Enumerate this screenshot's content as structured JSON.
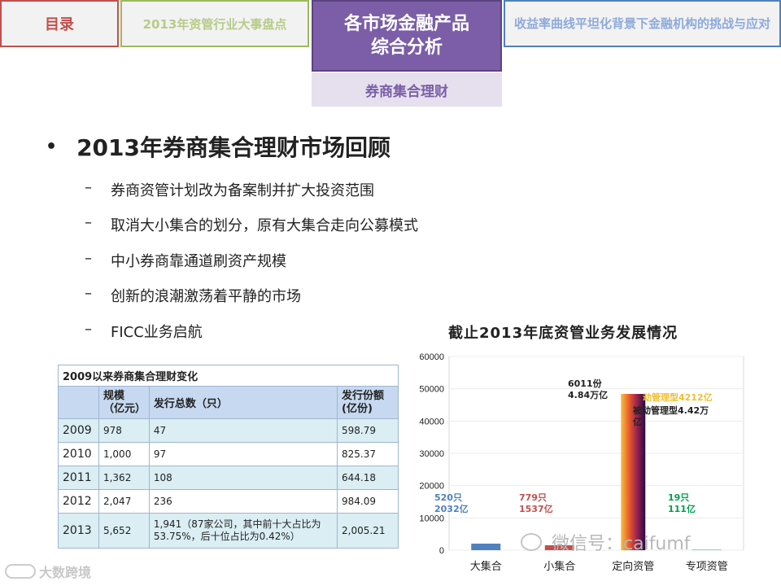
{
  "tabs": {
    "toc": "目录",
    "events": "2013年资管行业大事盘点",
    "analysis_line1": "各市场金融产品",
    "analysis_line2": "综合分析",
    "yield": "收益率曲线平坦化背景下金融机构的挑战与应对",
    "sub": "券商集合理财"
  },
  "main_bullet": "2013年券商集合理财市场回顾",
  "sub_bullets": [
    "券商资管计划改为备案制并扩大投资范围",
    "取消大小集合的划分，原有大集合走向公募模式",
    "中小券商靠通道刷资产规模",
    "创新的浪潮激荡着平静的市场",
    "FICC业务启航"
  ],
  "table": {
    "caption": "2009以来券商集合理财变化",
    "headers": [
      "",
      "规模\n（亿元）",
      "发行总数（只）",
      "发行份额\n(亿份)"
    ],
    "rows": [
      [
        "2009",
        "978",
        "47",
        "598.79"
      ],
      [
        "2010",
        "1,000",
        "97",
        "825.37"
      ],
      [
        "2011",
        "1,362",
        "108",
        "644.18"
      ],
      [
        "2012",
        "2,047",
        "236",
        "984.09"
      ],
      [
        "2013",
        "5,652",
        "1,941（87家公司，其中前十大占比为53.75%，后十位占比为0.42%）",
        "2,005.21"
      ]
    ]
  },
  "chart_data": {
    "type": "bar",
    "title": "截止2013年底资管业务发展情况",
    "categories": [
      "大集合",
      "小集合",
      "定向资管",
      "专项资管"
    ],
    "values": [
      2032,
      1537,
      48400,
      111
    ],
    "ylim": [
      0,
      60000
    ],
    "yticks": [
      0,
      10000,
      20000,
      30000,
      40000,
      50000,
      60000
    ],
    "annotations": [
      {
        "line1": "520只",
        "line2": "2032亿",
        "color": "#4f81bd"
      },
      {
        "line1": "779只",
        "line2": "1537亿",
        "color": "#c0504d"
      },
      {
        "line1": "6011份",
        "line2": "4.84万亿",
        "color": "#222222"
      },
      {
        "line1": "19只",
        "line2": "111亿",
        "color": "#00a050"
      }
    ],
    "stack_labels": {
      "active": "动管理型4212亿",
      "passive_1": "被动管理型4.42万",
      "passive_2": "亿"
    },
    "bar_colors": [
      "#4f81bd",
      "#c0504d",
      "#f0a020",
      "#00a050"
    ]
  },
  "watermark": "微信号：caifumf",
  "brand": "大数跨境"
}
